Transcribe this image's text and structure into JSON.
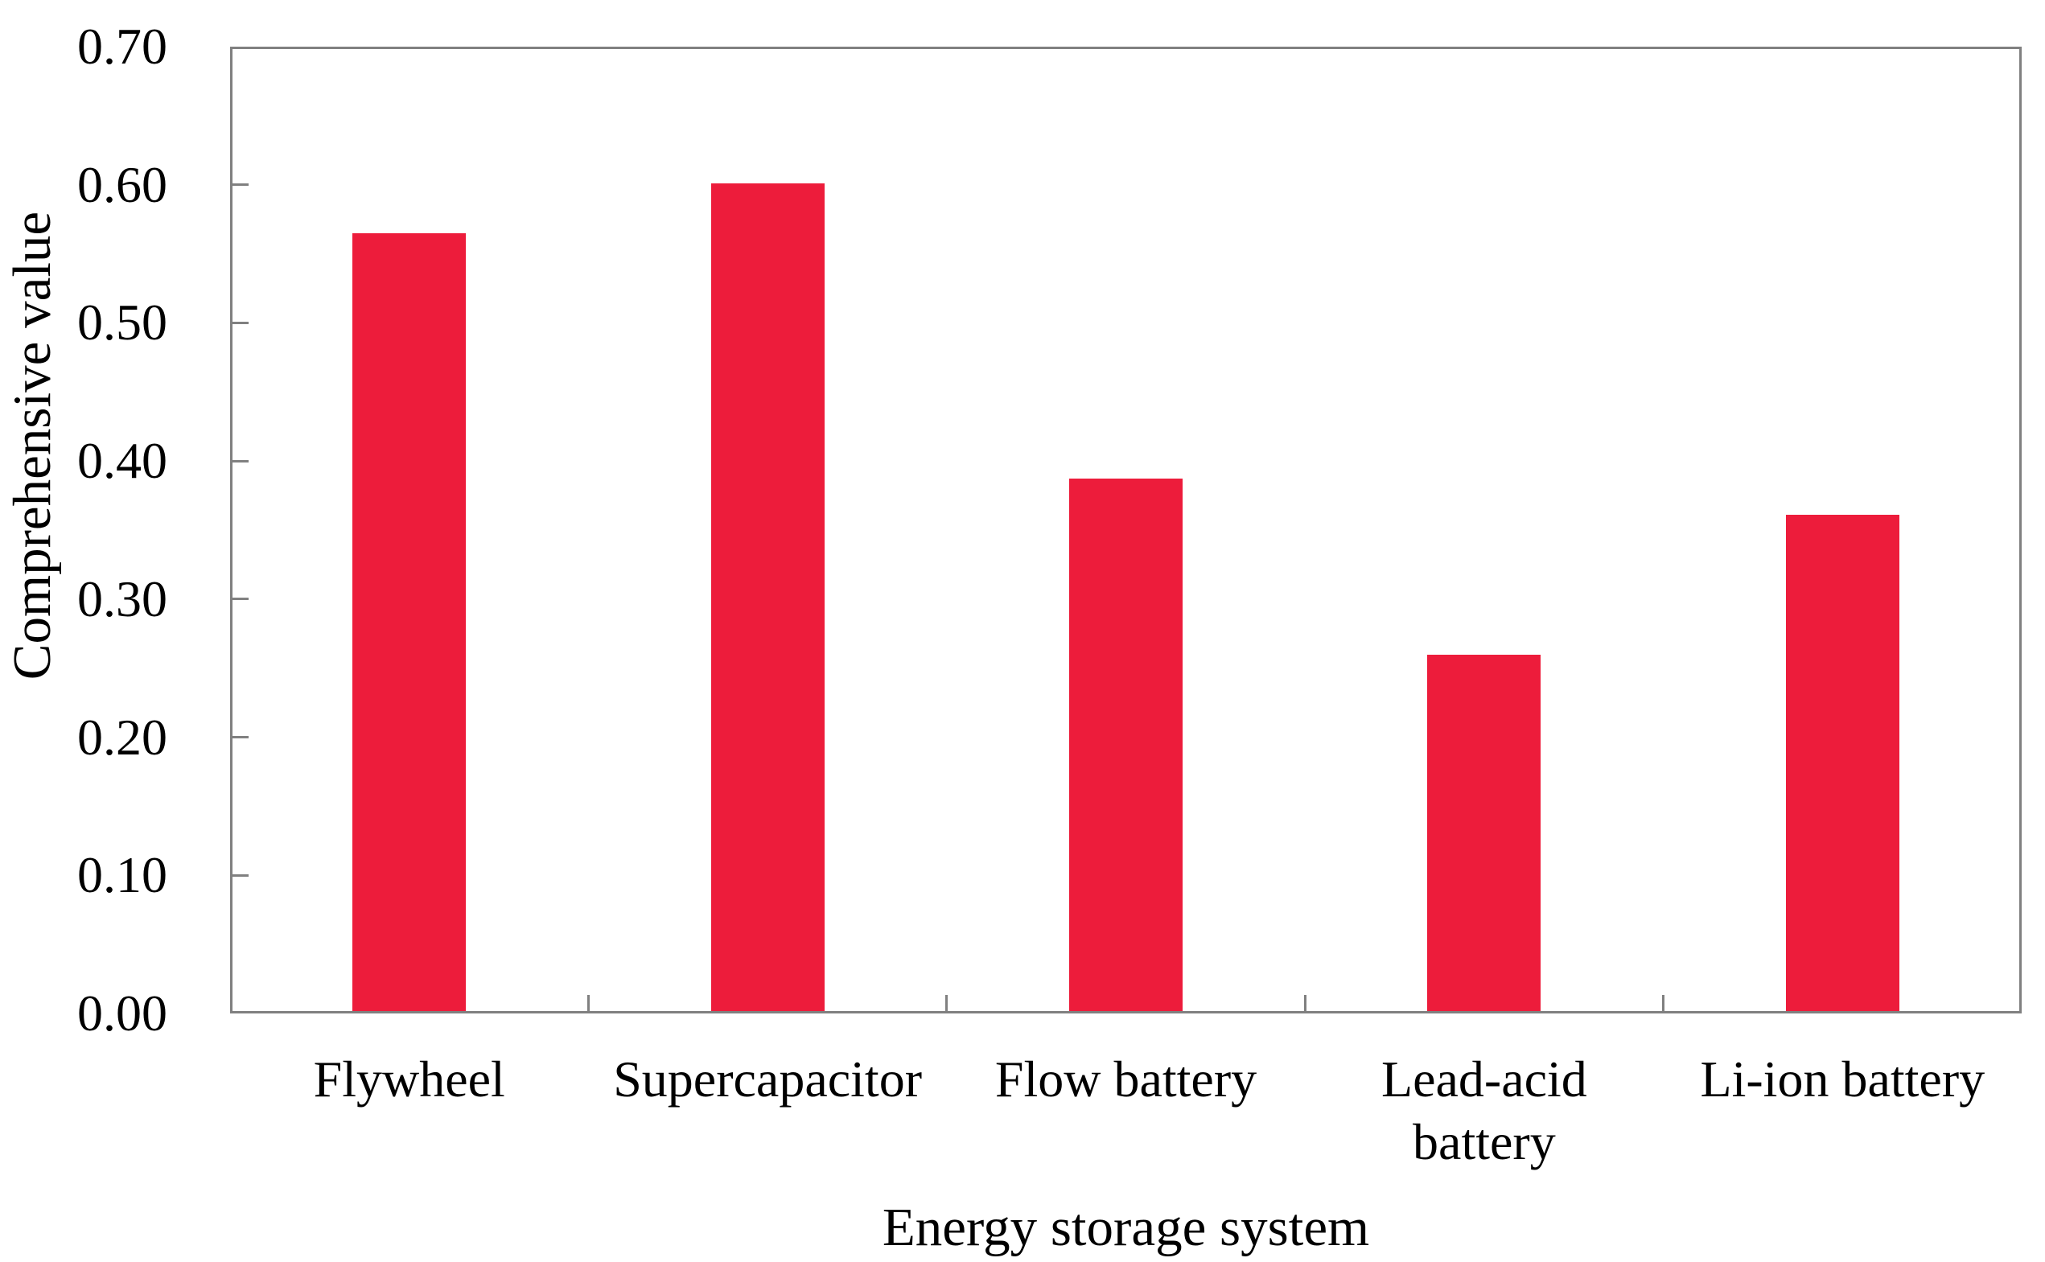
{
  "chart_data": {
    "type": "bar",
    "title": "",
    "categories": [
      "Flywheel",
      "Supercapacitor",
      "Flow battery",
      "Lead-acid battery",
      "Li-ion battery"
    ],
    "category_label_lines": [
      [
        "Flywheel"
      ],
      [
        "Supercapacitor"
      ],
      [
        "Flow battery"
      ],
      [
        "Lead-acid",
        "battery"
      ],
      [
        "Li-ion battery"
      ]
    ],
    "values": [
      0.565,
      0.601,
      0.387,
      0.26,
      0.361
    ],
    "xlabel": "Energy storage system",
    "ylabel": "Comprehensive value",
    "ylim": [
      0.0,
      0.7
    ],
    "y_tick_step": 0.1,
    "y_tick_labels": [
      "0.00",
      "0.10",
      "0.20",
      "0.30",
      "0.40",
      "0.50",
      "0.60",
      "0.70"
    ],
    "grid": false,
    "legend": false,
    "bar_color": "#ED1C3B",
    "axis_color": "#808080",
    "text_color": "#000000"
  }
}
